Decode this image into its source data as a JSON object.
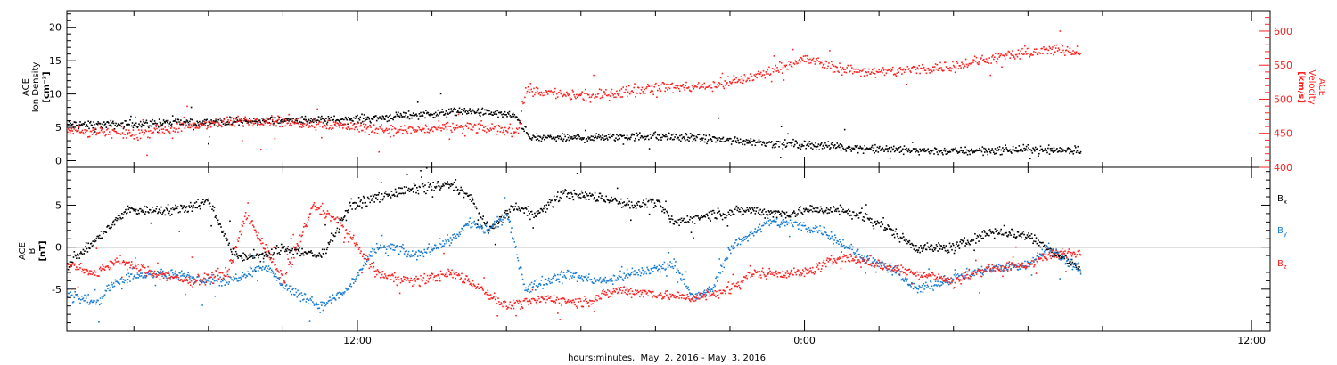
{
  "chart_data": [
    {
      "type": "scatter",
      "panel": "top",
      "ylabel_left": [
        "ACE",
        "Ion Density",
        "[cm⁻³]"
      ],
      "ylabel_right": [
        "ACE",
        "Velocity",
        "[km/s]"
      ],
      "ylim_left": [
        -1,
        22.5
      ],
      "ylim_right": [
        400,
        630
      ],
      "yticks_left": [
        0,
        5,
        10,
        15,
        20
      ],
      "yticks_right": [
        400,
        450,
        500,
        550,
        600
      ],
      "colors": {
        "density": "#000000",
        "velocity": "#ff2020"
      },
      "series": [
        {
          "name": "Ion Density",
          "axis": "left",
          "color": "#000000",
          "anchors": [
            [
              4.2,
              5.5
            ],
            [
              5.5,
              5.5
            ],
            [
              7,
              5.8
            ],
            [
              9,
              6
            ],
            [
              10.5,
              6.2
            ],
            [
              11.5,
              6.2
            ],
            [
              12.5,
              6.5
            ],
            [
              13.5,
              7
            ],
            [
              15,
              7.5
            ],
            [
              16,
              7
            ],
            [
              16.3,
              6.5
            ],
            [
              16.6,
              3.5
            ],
            [
              18,
              3.5
            ],
            [
              20,
              3.8
            ],
            [
              22,
              3.2
            ],
            [
              23,
              2.8
            ],
            [
              24,
              2.5
            ],
            [
              25,
              2.2
            ],
            [
              26,
              1.8
            ],
            [
              28,
              1.5
            ],
            [
              30,
              1.8
            ],
            [
              31.4,
              1.7
            ]
          ]
        },
        {
          "name": "Velocity",
          "axis": "right",
          "color": "#ff2020",
          "anchors": [
            [
              4.2,
              455
            ],
            [
              6,
              450
            ],
            [
              8,
              465
            ],
            [
              9.5,
              470
            ],
            [
              11,
              465
            ],
            [
              13,
              455
            ],
            [
              15,
              460
            ],
            [
              16.3,
              455
            ],
            [
              16.5,
              515
            ],
            [
              17.2,
              510
            ],
            [
              18,
              505
            ],
            [
              19,
              510
            ],
            [
              20,
              520
            ],
            [
              21,
              518
            ],
            [
              22,
              525
            ],
            [
              23,
              540
            ],
            [
              24,
              560
            ],
            [
              25,
              545
            ],
            [
              26,
              540
            ],
            [
              27,
              545
            ],
            [
              28,
              550
            ],
            [
              29,
              560
            ],
            [
              30,
              570
            ],
            [
              31,
              575
            ],
            [
              31.4,
              570
            ]
          ]
        }
      ]
    },
    {
      "type": "scatter",
      "panel": "bottom",
      "ylabel_left": [
        "ACE",
        "B",
        "[nT]"
      ],
      "ylim": [
        -10,
        9.5
      ],
      "yticks": [
        -5,
        0,
        5
      ],
      "zero_line": true,
      "series": [
        {
          "name": "Bx",
          "label": "B",
          "sub": "x",
          "color": "#000000",
          "anchors": [
            [
              4.2,
              -2
            ],
            [
              5,
              1
            ],
            [
              5.8,
              4.5
            ],
            [
              7,
              4.5
            ],
            [
              8,
              5.5
            ],
            [
              8.7,
              -1
            ],
            [
              9.5,
              -1
            ],
            [
              10,
              0
            ],
            [
              11,
              -1
            ],
            [
              11.8,
              5
            ],
            [
              12.5,
              6
            ],
            [
              13.5,
              7
            ],
            [
              14.5,
              7.5
            ],
            [
              15,
              6
            ],
            [
              15.5,
              2
            ],
            [
              16.2,
              5
            ],
            [
              16.8,
              4
            ],
            [
              17.5,
              6.5
            ],
            [
              18.5,
              6
            ],
            [
              19.5,
              5
            ],
            [
              20,
              5.5
            ],
            [
              20.5,
              3
            ],
            [
              21.5,
              4
            ],
            [
              22.5,
              4.5
            ],
            [
              23.5,
              4
            ],
            [
              24,
              4.5
            ],
            [
              25,
              4.5
            ],
            [
              26,
              3
            ],
            [
              27,
              0
            ],
            [
              28,
              0
            ],
            [
              28.5,
              1
            ],
            [
              29,
              2
            ],
            [
              30,
              1.5
            ],
            [
              30.5,
              0
            ],
            [
              31.4,
              -2.5
            ]
          ]
        },
        {
          "name": "By",
          "label": "B",
          "sub": "y",
          "color": "#1a7dd0",
          "anchors": [
            [
              4.2,
              -5.5
            ],
            [
              5,
              -6.5
            ],
            [
              5.5,
              -4
            ],
            [
              6.5,
              -3
            ],
            [
              7.5,
              -3.5
            ],
            [
              8.5,
              -4
            ],
            [
              9.5,
              -2
            ],
            [
              10,
              -4.5
            ],
            [
              11,
              -7
            ],
            [
              11.7,
              -5
            ],
            [
              12.5,
              0
            ],
            [
              13,
              0
            ],
            [
              13.5,
              -1
            ],
            [
              14.5,
              1
            ],
            [
              15,
              3
            ],
            [
              15.5,
              2
            ],
            [
              16,
              4
            ],
            [
              16.5,
              -5
            ],
            [
              17.5,
              -3
            ],
            [
              18.5,
              -4
            ],
            [
              19.5,
              -3
            ],
            [
              20.5,
              -2
            ],
            [
              21,
              -6
            ],
            [
              21.5,
              -5
            ],
            [
              22,
              0
            ],
            [
              23,
              3
            ],
            [
              23.5,
              3
            ],
            [
              24.5,
              2
            ],
            [
              25.5,
              -1
            ],
            [
              26.5,
              -3
            ],
            [
              27,
              -5
            ],
            [
              28,
              -3.5
            ],
            [
              29,
              -2.5
            ],
            [
              30,
              -2
            ],
            [
              30.5,
              0
            ],
            [
              31.4,
              -2.5
            ]
          ]
        },
        {
          "name": "Bz",
          "label": "B",
          "sub": "z",
          "color": "#ff2020",
          "anchors": [
            [
              4.2,
              -2
            ],
            [
              5,
              -3
            ],
            [
              5.5,
              -1.5
            ],
            [
              6.5,
              -3
            ],
            [
              7.5,
              -4
            ],
            [
              8.5,
              -3
            ],
            [
              9,
              4
            ],
            [
              10,
              -4
            ],
            [
              10.8,
              5
            ],
            [
              11.5,
              3
            ],
            [
              12.5,
              -3
            ],
            [
              13.5,
              -4
            ],
            [
              14.5,
              -3
            ],
            [
              15,
              -4
            ],
            [
              16,
              -7
            ],
            [
              17,
              -6
            ],
            [
              18,
              -6.5
            ],
            [
              19,
              -5
            ],
            [
              20,
              -5.5
            ],
            [
              21,
              -6
            ],
            [
              22,
              -5
            ],
            [
              22.5,
              -3
            ],
            [
              23.5,
              -3
            ],
            [
              24,
              -3
            ],
            [
              25,
              -1
            ],
            [
              26,
              -2
            ],
            [
              27,
              -3
            ],
            [
              28,
              -4
            ],
            [
              28.5,
              -3
            ],
            [
              29,
              -2.5
            ],
            [
              30,
              -2
            ],
            [
              30.5,
              -1
            ],
            [
              31.4,
              -0.5
            ]
          ]
        }
      ]
    }
  ],
  "x_axis": {
    "range_hours": [
      4.2,
      36.5
    ],
    "major_ticks": [
      {
        "hour": 12,
        "label": "12:00"
      },
      {
        "hour": 24,
        "label": "0:00"
      },
      {
        "hour": 36,
        "label": "12:00"
      }
    ],
    "minor_tick_interval_hours": 2,
    "title": "hours:minutes,  May  2, 2016 - May  3, 2016"
  },
  "data_end_hour": 31.4
}
